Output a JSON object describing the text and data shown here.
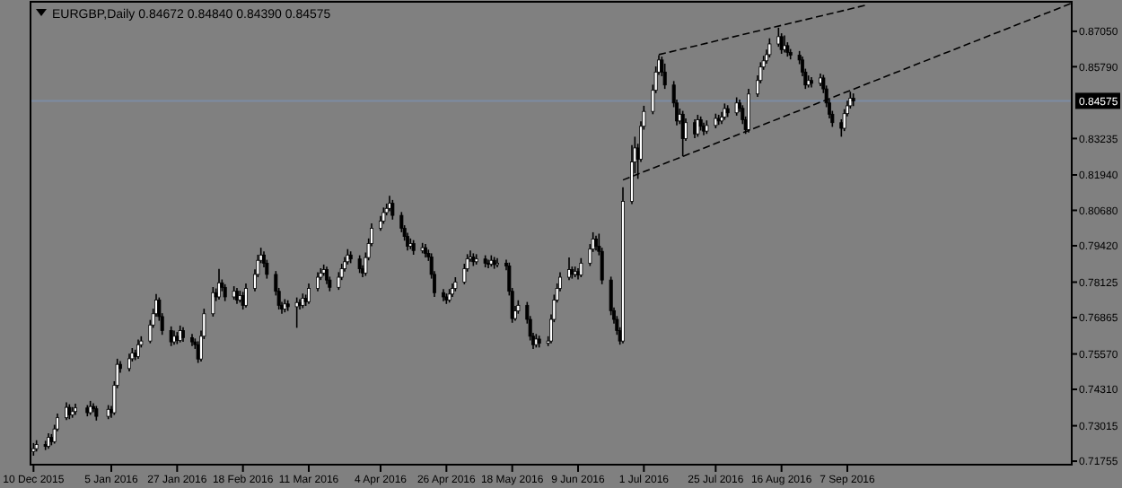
{
  "chart_data": {
    "type": "candlestick",
    "title": "EURGBP,Daily 0.84672 0.84840 0.84390 0.84575",
    "xlim": [
      "2015-12-09",
      "2016-11-21"
    ],
    "ylim": [
      0.7163,
      0.881
    ],
    "xticks": [
      {
        "value": "2015-12-10",
        "label": "10 Dec 2015"
      },
      {
        "value": "2016-01-05",
        "label": "5 Jan 2016"
      },
      {
        "value": "2016-01-27",
        "label": "27 Jan 2016"
      },
      {
        "value": "2016-02-18",
        "label": "18 Feb 2016"
      },
      {
        "value": "2016-03-11",
        "label": "11 Mar 2016"
      },
      {
        "value": "2016-04-04",
        "label": "4 Apr 2016"
      },
      {
        "value": "2016-04-26",
        "label": "26 Apr 2016"
      },
      {
        "value": "2016-05-18",
        "label": "18 May 2016"
      },
      {
        "value": "2016-06-09",
        "label": "9 Jun 2016"
      },
      {
        "value": "2016-07-01",
        "label": "1 Jul 2016"
      },
      {
        "value": "2016-07-25",
        "label": "25 Jul 2016"
      },
      {
        "value": "2016-08-16",
        "label": "16 Aug 2016"
      },
      {
        "value": "2016-09-07",
        "label": "7 Sep 2016"
      }
    ],
    "yticks": [
      {
        "value": 0.8705,
        "label": "0.87050"
      },
      {
        "value": 0.8579,
        "label": "0.85790"
      },
      {
        "value": 0.83235,
        "label": "0.83235"
      },
      {
        "value": 0.8194,
        "label": "0.81940"
      },
      {
        "value": 0.8068,
        "label": "0.80680"
      },
      {
        "value": 0.7942,
        "label": "0.79420"
      },
      {
        "value": 0.78125,
        "label": "0.78125"
      },
      {
        "value": 0.76865,
        "label": "0.76865"
      },
      {
        "value": 0.7557,
        "label": "0.75570"
      },
      {
        "value": 0.7431,
        "label": "0.74310"
      },
      {
        "value": 0.73015,
        "label": "0.73015"
      },
      {
        "value": 0.71755,
        "label": "0.71755"
      }
    ],
    "ref_lines": [
      {
        "axis": "y",
        "value": 0.84575,
        "label": "0.84575",
        "color": "#7d8ba3"
      }
    ],
    "series": [
      {
        "color": "#000000",
        "x": [
          "2015-12-10",
          "2015-12-11",
          "2015-12-14",
          "2015-12-15",
          "2015-12-16",
          "2015-12-17",
          "2015-12-18",
          "2015-12-21",
          "2015-12-22",
          "2015-12-23",
          "2015-12-24",
          "2015-12-28",
          "2015-12-29",
          "2015-12-30",
          "2015-12-31",
          "2016-01-04",
          "2016-01-05",
          "2016-01-06",
          "2016-01-07",
          "2016-01-08",
          "2016-01-11",
          "2016-01-12",
          "2016-01-13",
          "2016-01-14",
          "2016-01-15",
          "2016-01-18",
          "2016-01-19",
          "2016-01-20",
          "2016-01-21",
          "2016-01-22",
          "2016-01-25",
          "2016-01-26",
          "2016-01-27",
          "2016-01-28",
          "2016-01-29",
          "2016-02-01",
          "2016-02-02",
          "2016-02-03",
          "2016-02-04",
          "2016-02-05",
          "2016-02-08",
          "2016-02-09",
          "2016-02-10",
          "2016-02-11",
          "2016-02-12",
          "2016-02-15",
          "2016-02-16",
          "2016-02-17",
          "2016-02-18",
          "2016-02-19",
          "2016-02-22",
          "2016-02-23",
          "2016-02-24",
          "2016-02-25",
          "2016-02-26",
          "2016-02-29",
          "2016-03-01",
          "2016-03-02",
          "2016-03-03",
          "2016-03-04",
          "2016-03-07",
          "2016-03-08",
          "2016-03-09",
          "2016-03-10",
          "2016-03-11",
          "2016-03-14",
          "2016-03-15",
          "2016-03-16",
          "2016-03-17",
          "2016-03-18",
          "2016-03-21",
          "2016-03-22",
          "2016-03-23",
          "2016-03-24",
          "2016-03-25",
          "2016-03-28",
          "2016-03-29",
          "2016-03-30",
          "2016-03-31",
          "2016-04-01",
          "2016-04-04",
          "2016-04-05",
          "2016-04-06",
          "2016-04-07",
          "2016-04-08",
          "2016-04-11",
          "2016-04-12",
          "2016-04-13",
          "2016-04-14",
          "2016-04-15",
          "2016-04-18",
          "2016-04-19",
          "2016-04-20",
          "2016-04-21",
          "2016-04-22",
          "2016-04-25",
          "2016-04-26",
          "2016-04-27",
          "2016-04-28",
          "2016-04-29",
          "2016-05-02",
          "2016-05-03",
          "2016-05-04",
          "2016-05-05",
          "2016-05-06",
          "2016-05-09",
          "2016-05-10",
          "2016-05-11",
          "2016-05-12",
          "2016-05-13",
          "2016-05-16",
          "2016-05-17",
          "2016-05-18",
          "2016-05-19",
          "2016-05-20",
          "2016-05-23",
          "2016-05-24",
          "2016-05-25",
          "2016-05-26",
          "2016-05-27",
          "2016-05-30",
          "2016-05-31",
          "2016-06-01",
          "2016-06-02",
          "2016-06-03",
          "2016-06-06",
          "2016-06-07",
          "2016-06-08",
          "2016-06-09",
          "2016-06-10",
          "2016-06-13",
          "2016-06-14",
          "2016-06-15",
          "2016-06-16",
          "2016-06-17",
          "2016-06-20",
          "2016-06-21",
          "2016-06-22",
          "2016-06-23",
          "2016-06-24",
          "2016-06-27",
          "2016-06-28",
          "2016-06-29",
          "2016-06-30",
          "2016-07-01",
          "2016-07-04",
          "2016-07-05",
          "2016-07-06",
          "2016-07-07",
          "2016-07-08",
          "2016-07-11",
          "2016-07-12",
          "2016-07-13",
          "2016-07-14",
          "2016-07-15",
          "2016-07-18",
          "2016-07-19",
          "2016-07-20",
          "2016-07-21",
          "2016-07-22",
          "2016-07-25",
          "2016-07-26",
          "2016-07-27",
          "2016-07-28",
          "2016-07-29",
          "2016-08-01",
          "2016-08-02",
          "2016-08-03",
          "2016-08-04",
          "2016-08-05",
          "2016-08-08",
          "2016-08-09",
          "2016-08-10",
          "2016-08-11",
          "2016-08-12",
          "2016-08-15",
          "2016-08-16",
          "2016-08-17",
          "2016-08-18",
          "2016-08-19",
          "2016-08-22",
          "2016-08-23",
          "2016-08-24",
          "2016-08-25",
          "2016-08-26",
          "2016-08-29",
          "2016-08-30",
          "2016-08-31",
          "2016-09-01",
          "2016-09-02",
          "2016-09-05",
          "2016-09-06",
          "2016-09-07",
          "2016-09-08",
          "2016-09-09"
        ],
        "ohlc": [
          [
            0.721,
            0.724,
            0.7195,
            0.722
          ],
          [
            0.722,
            0.725,
            0.721,
            0.7235
          ],
          [
            0.7235,
            0.7248,
            0.7215,
            0.7228
          ],
          [
            0.7228,
            0.7275,
            0.722,
            0.726
          ],
          [
            0.726,
            0.7272,
            0.7232,
            0.7245
          ],
          [
            0.7245,
            0.7305,
            0.7238,
            0.729
          ],
          [
            0.729,
            0.7345,
            0.7282,
            0.733
          ],
          [
            0.733,
            0.7385,
            0.7322,
            0.7367
          ],
          [
            0.7367,
            0.7378,
            0.7325,
            0.734
          ],
          [
            0.734,
            0.7368,
            0.733,
            0.7352
          ],
          [
            0.7352,
            0.738,
            0.734,
            0.7365
          ],
          [
            0.7365,
            0.7375,
            0.7335,
            0.7348
          ],
          [
            0.7348,
            0.739,
            0.734,
            0.737
          ],
          [
            0.737,
            0.7382,
            0.735,
            0.7362
          ],
          [
            0.7362,
            0.7372,
            0.732,
            0.7335
          ],
          [
            0.7335,
            0.7375,
            0.7325,
            0.736
          ],
          [
            0.736,
            0.7372,
            0.733,
            0.7348
          ],
          [
            0.7348,
            0.746,
            0.734,
            0.7445
          ],
          [
            0.7445,
            0.754,
            0.7435,
            0.752
          ],
          [
            0.752,
            0.7532,
            0.749,
            0.7505
          ],
          [
            0.7505,
            0.7558,
            0.7495,
            0.754
          ],
          [
            0.754,
            0.7578,
            0.753,
            0.756
          ],
          [
            0.756,
            0.7572,
            0.7535,
            0.7548
          ],
          [
            0.7548,
            0.7608,
            0.754,
            0.759
          ],
          [
            0.759,
            0.762,
            0.758,
            0.7603
          ],
          [
            0.7603,
            0.7678,
            0.7595,
            0.766
          ],
          [
            0.766,
            0.7718,
            0.765,
            0.77
          ],
          [
            0.77,
            0.777,
            0.769,
            0.7749
          ],
          [
            0.7749,
            0.7758,
            0.7675,
            0.769
          ],
          [
            0.769,
            0.7702,
            0.7625,
            0.764
          ],
          [
            0.764,
            0.7655,
            0.7585,
            0.76
          ],
          [
            0.76,
            0.764,
            0.759,
            0.762
          ],
          [
            0.762,
            0.7635,
            0.7592,
            0.7605
          ],
          [
            0.7605,
            0.7658,
            0.7598,
            0.764
          ],
          [
            0.764,
            0.7652,
            0.76,
            0.7615
          ],
          [
            0.7615,
            0.7628,
            0.7585,
            0.76
          ],
          [
            0.76,
            0.7612,
            0.7575,
            0.759
          ],
          [
            0.759,
            0.7602,
            0.7525,
            0.7539
          ],
          [
            0.7539,
            0.764,
            0.753,
            0.762
          ],
          [
            0.762,
            0.7718,
            0.761,
            0.77
          ],
          [
            0.77,
            0.7795,
            0.769,
            0.7775
          ],
          [
            0.7775,
            0.779,
            0.7745,
            0.776
          ],
          [
            0.776,
            0.786,
            0.775,
            0.781
          ],
          [
            0.781,
            0.7822,
            0.778,
            0.7794
          ],
          [
            0.7794,
            0.7805,
            0.7745,
            0.776
          ],
          [
            0.776,
            0.7798,
            0.775,
            0.778
          ],
          [
            0.778,
            0.7792,
            0.7735,
            0.7749
          ],
          [
            0.7749,
            0.7782,
            0.774,
            0.7765
          ],
          [
            0.7765,
            0.7778,
            0.7715,
            0.773
          ],
          [
            0.773,
            0.7808,
            0.7722,
            0.779
          ],
          [
            0.779,
            0.7858,
            0.778,
            0.784
          ],
          [
            0.784,
            0.791,
            0.783,
            0.789
          ],
          [
            0.789,
            0.7935,
            0.788,
            0.7909
          ],
          [
            0.7909,
            0.7922,
            0.7865,
            0.788
          ],
          [
            0.788,
            0.7892,
            0.7825,
            0.784
          ],
          [
            0.784,
            0.7852,
            0.7765,
            0.778
          ],
          [
            0.778,
            0.7792,
            0.7715,
            0.773
          ],
          [
            0.773,
            0.7742,
            0.77,
            0.7717
          ],
          [
            0.7717,
            0.7752,
            0.7705,
            0.7735
          ],
          [
            0.7735,
            0.7748,
            0.771,
            0.7725
          ],
          [
            0.7725,
            0.7758,
            0.765,
            0.774
          ],
          [
            0.774,
            0.7752,
            0.7715,
            0.773
          ],
          [
            0.773,
            0.7772,
            0.772,
            0.7755
          ],
          [
            0.7755,
            0.7768,
            0.7728,
            0.7743
          ],
          [
            0.7743,
            0.7808,
            0.7735,
            0.779
          ],
          [
            0.779,
            0.7848,
            0.778,
            0.783
          ],
          [
            0.783,
            0.7862,
            0.782,
            0.7845
          ],
          [
            0.7845,
            0.7875,
            0.7835,
            0.7857
          ],
          [
            0.7857,
            0.7868,
            0.7805,
            0.782
          ],
          [
            0.782,
            0.7832,
            0.778,
            0.7794
          ],
          [
            0.7794,
            0.7848,
            0.7785,
            0.783
          ],
          [
            0.783,
            0.7878,
            0.782,
            0.786
          ],
          [
            0.786,
            0.7902,
            0.785,
            0.7885
          ],
          [
            0.7885,
            0.793,
            0.7875,
            0.7909
          ],
          [
            0.7909,
            0.7922,
            0.788,
            0.7895
          ],
          [
            0.7895,
            0.7908,
            0.7845,
            0.786
          ],
          [
            0.786,
            0.7872,
            0.783,
            0.7845
          ],
          [
            0.7845,
            0.7918,
            0.7835,
            0.79
          ],
          [
            0.79,
            0.7968,
            0.789,
            0.795
          ],
          [
            0.795,
            0.8022,
            0.794,
            0.8004
          ],
          [
            0.8004,
            0.8048,
            0.7995,
            0.803
          ],
          [
            0.803,
            0.8078,
            0.802,
            0.806
          ],
          [
            0.806,
            0.8092,
            0.805,
            0.8075
          ],
          [
            0.8075,
            0.812,
            0.8065,
            0.8093
          ],
          [
            0.8093,
            0.8105,
            0.8035,
            0.805
          ],
          [
            0.805,
            0.8062,
            0.799,
            0.8004
          ],
          [
            0.8004,
            0.8015,
            0.796,
            0.7975
          ],
          [
            0.7975,
            0.7988,
            0.7925,
            0.794
          ],
          [
            0.794,
            0.7968,
            0.793,
            0.795
          ],
          [
            0.795,
            0.7962,
            0.791,
            0.7925
          ],
          [
            0.7925,
            0.7952,
            0.7915,
            0.7935
          ],
          [
            0.7935,
            0.7948,
            0.79,
            0.7915
          ],
          [
            0.7915,
            0.7928,
            0.7888,
            0.7902
          ],
          [
            0.7902,
            0.7915,
            0.7825,
            0.784
          ],
          [
            0.784,
            0.7852,
            0.776,
            0.7775
          ],
          [
            0.7775,
            0.7788,
            0.7745,
            0.776
          ],
          [
            0.776,
            0.7772,
            0.7735,
            0.7749
          ],
          [
            0.7749,
            0.7788,
            0.774,
            0.777
          ],
          [
            0.777,
            0.7808,
            0.776,
            0.779
          ],
          [
            0.779,
            0.783,
            0.778,
            0.7813
          ],
          [
            0.7813,
            0.7878,
            0.7805,
            0.786
          ],
          [
            0.786,
            0.7912,
            0.785,
            0.7895
          ],
          [
            0.7895,
            0.7925,
            0.7885,
            0.7902
          ],
          [
            0.7902,
            0.7915,
            0.787,
            0.7885
          ],
          [
            0.7885,
            0.7912,
            0.7875,
            0.7895
          ],
          [
            0.7895,
            0.7908,
            0.7865,
            0.788
          ],
          [
            0.788,
            0.7892,
            0.7862,
            0.7877
          ],
          [
            0.7877,
            0.7908,
            0.7868,
            0.789
          ],
          [
            0.789,
            0.7902,
            0.786,
            0.7875
          ],
          [
            0.7875,
            0.7898,
            0.7865,
            0.788
          ],
          [
            0.788,
            0.7892,
            0.7855,
            0.787
          ],
          [
            0.787,
            0.7882,
            0.7765,
            0.778
          ],
          [
            0.778,
            0.7792,
            0.7668,
            0.7683
          ],
          [
            0.7683,
            0.7728,
            0.7675,
            0.771
          ],
          [
            0.771,
            0.7748,
            0.77,
            0.773
          ],
          [
            0.773,
            0.7742,
            0.7665,
            0.768
          ],
          [
            0.768,
            0.7692,
            0.7605,
            0.762
          ],
          [
            0.762,
            0.7632,
            0.7575,
            0.759
          ],
          [
            0.759,
            0.7628,
            0.758,
            0.761
          ],
          [
            0.761,
            0.7622,
            0.758,
            0.7595
          ],
          [
            0.7595,
            0.762,
            0.7585,
            0.7603
          ],
          [
            0.7603,
            0.7698,
            0.7595,
            0.768
          ],
          [
            0.768,
            0.7768,
            0.767,
            0.7749
          ],
          [
            0.7749,
            0.7808,
            0.774,
            0.779
          ],
          [
            0.779,
            0.7848,
            0.778,
            0.783
          ],
          [
            0.783,
            0.79,
            0.782,
            0.7857
          ],
          [
            0.7857,
            0.7868,
            0.7825,
            0.784
          ],
          [
            0.784,
            0.7868,
            0.783,
            0.785
          ],
          [
            0.785,
            0.7862,
            0.7822,
            0.7838
          ],
          [
            0.7838,
            0.7898,
            0.783,
            0.788
          ],
          [
            0.788,
            0.7948,
            0.787,
            0.793
          ],
          [
            0.793,
            0.799,
            0.792,
            0.7966
          ],
          [
            0.7966,
            0.7978,
            0.7925,
            0.794
          ],
          [
            0.794,
            0.7985,
            0.7908,
            0.7922
          ],
          [
            0.7922,
            0.7935,
            0.7805,
            0.782
          ],
          [
            0.782,
            0.7832,
            0.7695,
            0.7711
          ],
          [
            0.7711,
            0.7722,
            0.7665,
            0.768
          ],
          [
            0.768,
            0.7692,
            0.7625,
            0.764
          ],
          [
            0.764,
            0.7652,
            0.759,
            0.7603
          ],
          [
            0.7603,
            0.815,
            0.7595,
            0.81
          ],
          [
            0.81,
            0.83,
            0.809,
            0.824
          ],
          [
            0.824,
            0.833,
            0.82,
            0.829
          ],
          [
            0.829,
            0.8305,
            0.818,
            0.825
          ],
          [
            0.825,
            0.8385,
            0.824,
            0.8367
          ],
          [
            0.8367,
            0.844,
            0.8355,
            0.842
          ],
          [
            0.842,
            0.8515,
            0.841,
            0.8495
          ],
          [
            0.8495,
            0.858,
            0.8485,
            0.856
          ],
          [
            0.856,
            0.862,
            0.855,
            0.8603
          ],
          [
            0.8603,
            0.8615,
            0.8545,
            0.856
          ],
          [
            0.856,
            0.859,
            0.85,
            0.8514
          ],
          [
            0.8514,
            0.8528,
            0.8435,
            0.845
          ],
          [
            0.845,
            0.8462,
            0.837,
            0.8386
          ],
          [
            0.8386,
            0.843,
            0.8375,
            0.841
          ],
          [
            0.841,
            0.8422,
            0.826,
            0.8323
          ],
          [
            0.8323,
            0.8395,
            0.8315,
            0.838
          ],
          [
            0.838,
            0.8392,
            0.8325,
            0.834
          ],
          [
            0.834,
            0.8408,
            0.833,
            0.839
          ],
          [
            0.839,
            0.8402,
            0.8352,
            0.8367
          ],
          [
            0.8367,
            0.838,
            0.8335,
            0.835
          ],
          [
            0.835,
            0.8388,
            0.834,
            0.837
          ],
          [
            0.837,
            0.8412,
            0.836,
            0.8395
          ],
          [
            0.8395,
            0.8408,
            0.8372,
            0.8386
          ],
          [
            0.8386,
            0.8418,
            0.8375,
            0.84
          ],
          [
            0.84,
            0.8448,
            0.839,
            0.843
          ],
          [
            0.843,
            0.8442,
            0.84,
            0.8415
          ],
          [
            0.8415,
            0.847,
            0.8405,
            0.845
          ],
          [
            0.845,
            0.8462,
            0.8418,
            0.8431
          ],
          [
            0.8431,
            0.8442,
            0.8375,
            0.839
          ],
          [
            0.839,
            0.8402,
            0.834,
            0.8355
          ],
          [
            0.8355,
            0.85,
            0.8345,
            0.8482
          ],
          [
            0.8482,
            0.8548,
            0.8472,
            0.853
          ],
          [
            0.853,
            0.8595,
            0.852,
            0.8578
          ],
          [
            0.8578,
            0.8618,
            0.8568,
            0.86
          ],
          [
            0.86,
            0.864,
            0.859,
            0.8622
          ],
          [
            0.8622,
            0.868,
            0.8612,
            0.866
          ],
          [
            0.866,
            0.8718,
            0.865,
            0.8686
          ],
          [
            0.8686,
            0.8698,
            0.8625,
            0.864
          ],
          [
            0.864,
            0.869,
            0.863,
            0.8654
          ],
          [
            0.8654,
            0.8666,
            0.8615,
            0.863
          ],
          [
            0.863,
            0.8642,
            0.8605,
            0.862
          ],
          [
            0.862,
            0.8635,
            0.8588,
            0.8603
          ],
          [
            0.8603,
            0.8615,
            0.8545,
            0.856
          ],
          [
            0.856,
            0.8572,
            0.85,
            0.8514
          ],
          [
            0.8514,
            0.8548,
            0.8505,
            0.853
          ],
          [
            0.853,
            0.8542,
            0.8505,
            0.852
          ],
          [
            0.852,
            0.8555,
            0.851,
            0.8539
          ],
          [
            0.8539,
            0.855,
            0.8485,
            0.85
          ],
          [
            0.85,
            0.8512,
            0.8435,
            0.845
          ],
          [
            0.845,
            0.8462,
            0.8395,
            0.841
          ],
          [
            0.841,
            0.8422,
            0.8365,
            0.838
          ],
          [
            0.838,
            0.8392,
            0.833,
            0.836
          ],
          [
            0.836,
            0.8428,
            0.835,
            0.8412
          ],
          [
            0.8412,
            0.8458,
            0.8402,
            0.844
          ],
          [
            0.844,
            0.849,
            0.843,
            0.8467
          ],
          [
            0.84672,
            0.8484,
            0.8439,
            0.84575
          ]
        ]
      },
      {
        "type": "line",
        "color": "#000000",
        "line_style": "dashed",
        "x": [
          "2016-07-06",
          "2016-09-14"
        ],
        "values": [
          0.8622,
          0.88
        ]
      },
      {
        "type": "line",
        "color": "#000000",
        "line_style": "dashed",
        "x": [
          "2016-06-24",
          "2016-11-21"
        ],
        "values": [
          0.8176,
          0.8805
        ]
      }
    ]
  }
}
